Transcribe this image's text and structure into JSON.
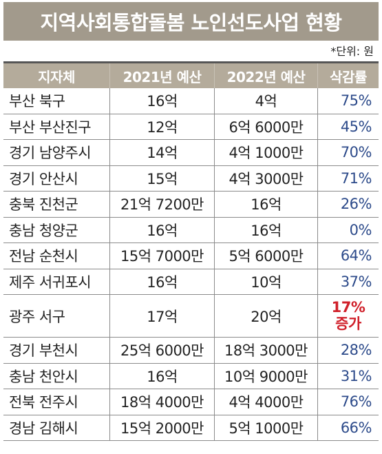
{
  "title": "지역사회통합돌봄 노인선도사업 현황",
  "unit_note": "*단위: 원",
  "columns": [
    "지자체",
    "2021년 예산",
    "2022년 예산",
    "삭감률"
  ],
  "rows": [
    {
      "region": "부산 북구",
      "budget_2021": "16억",
      "budget_2022": "4억",
      "rate": "75%"
    },
    {
      "region": "부산 부산진구",
      "budget_2021": "12억",
      "budget_2022": "6억 6000만",
      "rate": "45%"
    },
    {
      "region": "경기 남양주시",
      "budget_2021": "14억",
      "budget_2022": "4억 1000만",
      "rate": "70%"
    },
    {
      "region": "경기 안산시",
      "budget_2021": "15억",
      "budget_2022": "4억 3000만",
      "rate": "71%"
    },
    {
      "region": "충북 진천군",
      "budget_2021": "21억 7200만",
      "budget_2022": "16억",
      "rate": "26%"
    },
    {
      "region": "충남 청양군",
      "budget_2021": "16억",
      "budget_2022": "16억",
      "rate": "0%"
    },
    {
      "region": "전남 순천시",
      "budget_2021": "15억 7000만",
      "budget_2022": "5억 6000만",
      "rate": "64%"
    },
    {
      "region": "제주 서귀포시",
      "budget_2021": "16억",
      "budget_2022": "10억",
      "rate": "37%"
    },
    {
      "region": "광주 서구",
      "budget_2021": "17억",
      "budget_2022": "20억",
      "rate": "17%",
      "rate_note": "증가"
    },
    {
      "region": "경기 부천시",
      "budget_2021": "25억 6000만",
      "budget_2022": "18억 3000만",
      "rate": "28%"
    },
    {
      "region": "충남 천안시",
      "budget_2021": "16억",
      "budget_2022": "10억 9000만",
      "rate": "31%"
    },
    {
      "region": "전북 전주시",
      "budget_2021": "18억 4000만",
      "budget_2022": "4억 4000만",
      "rate": "76%"
    },
    {
      "region": "경남 김해시",
      "budget_2021": "15억 2000만",
      "budget_2022": "5억 1000만",
      "rate": "66%"
    }
  ],
  "colors": {
    "title_bg": "#a29a8c",
    "header_bg": "#b4ab9b",
    "rate_text": "#2c4a8a",
    "increase_text": "#d0202a"
  }
}
